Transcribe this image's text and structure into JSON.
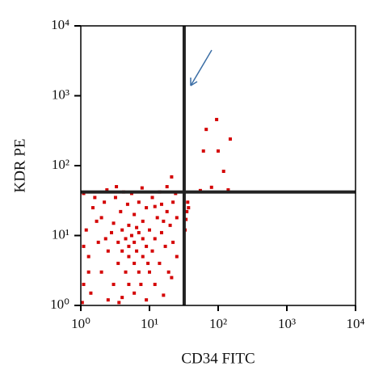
{
  "chart_data": {
    "type": "scatter",
    "x_label": "CD34 FITC",
    "y_label": "KDR PE",
    "log_x": true,
    "log_y": true,
    "color": "#d40000",
    "xlim": [
      1,
      10000
    ],
    "ylim": [
      1,
      10000
    ],
    "xticks": [
      {
        "value": 1,
        "label": "10⁰"
      },
      {
        "value": 10,
        "label": "10¹"
      },
      {
        "value": 100,
        "label": "10²"
      },
      {
        "value": 1000,
        "label": "10³"
      },
      {
        "value": 10000,
        "label": "10⁴"
      }
    ],
    "yticks": [
      {
        "value": 1,
        "label": "10⁰"
      },
      {
        "value": 10,
        "label": "10¹"
      },
      {
        "value": 100,
        "label": "10²"
      },
      {
        "value": 1000,
        "label": "10³"
      },
      {
        "value": 10000,
        "label": "10⁴"
      }
    ],
    "gate_x": 32,
    "gate_y": 42,
    "x": [
      1.1,
      1.3,
      1.2,
      1.5,
      1.4,
      1.8,
      2,
      2,
      2.2,
      2.5,
      2.5,
      2.8,
      3,
      3,
      3.2,
      3.5,
      3.5,
      3.8,
      4,
      4,
      4,
      4.5,
      4.5,
      4.8,
      5,
      5,
      5,
      5,
      5.5,
      5.5,
      6,
      6,
      6,
      6,
      6.5,
      7,
      7,
      7,
      7.5,
      8,
      8,
      8,
      9,
      9,
      9,
      10,
      10,
      11,
      11,
      12,
      12,
      13,
      14,
      15,
      15,
      16,
      17,
      18,
      19,
      20,
      22,
      22,
      25,
      25,
      1.1,
      1.6,
      2.4,
      3.3,
      4.2,
      7.8,
      14,
      18,
      1.05,
      1.1,
      1.3,
      1.7,
      2.3,
      3.6,
      6.5,
      9.5,
      12,
      16,
      21,
      24,
      35,
      37,
      34,
      33,
      36,
      21,
      95,
      67,
      150,
      61,
      100,
      120,
      80,
      140,
      55
    ],
    "values": [
      2,
      5,
      12,
      25,
      1.5,
      8,
      3,
      18,
      30,
      1.2,
      6,
      11,
      2,
      15,
      35,
      4,
      8,
      22,
      1.3,
      6,
      12,
      3,
      9,
      28,
      2,
      5,
      7,
      14,
      10,
      40,
      1.5,
      4,
      8,
      20,
      6,
      3,
      11,
      30,
      2,
      5,
      9,
      16,
      1.2,
      7,
      25,
      3,
      12,
      6,
      35,
      2,
      9,
      18,
      4,
      11,
      28,
      1.4,
      7,
      22,
      3,
      14,
      8,
      30,
      5,
      18,
      40,
      35,
      45,
      50,
      42,
      48,
      42,
      50,
      1.1,
      7,
      3,
      16,
      9,
      1.1,
      13,
      4,
      26,
      16,
      2.5,
      40,
      22,
      25,
      17,
      12,
      30,
      69,
      457,
      330,
      240,
      162,
      162,
      83,
      49,
      45,
      44
    ]
  }
}
